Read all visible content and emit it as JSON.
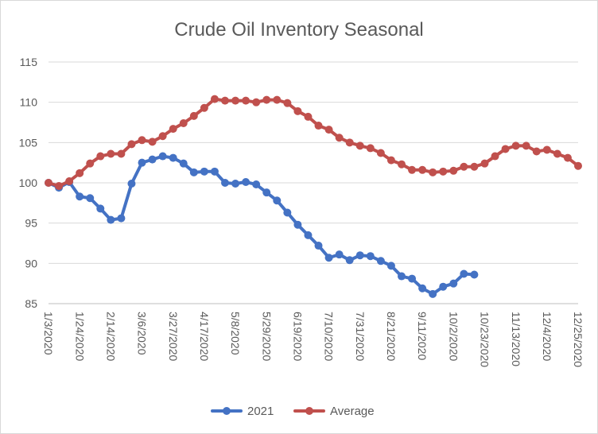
{
  "chart_data": {
    "type": "line",
    "title": "Crude Oil Inventory Seasonal",
    "xlabel": "",
    "ylabel": "",
    "ylim": [
      85,
      115
    ],
    "yticks": [
      85,
      90,
      95,
      100,
      105,
      110,
      115
    ],
    "xlim": [
      "1/3/2020",
      "12/25/2020"
    ],
    "x_tick_labels": [
      "1/3/2020",
      "1/24/2020",
      "2/14/2020",
      "3/6/2020",
      "3/27/2020",
      "4/17/2020",
      "5/8/2020",
      "5/29/2020",
      "6/19/2020",
      "7/10/2020",
      "7/31/2020",
      "8/21/2020",
      "9/11/2020",
      "10/2/2020",
      "10/23/2020",
      "11/13/2020",
      "12/4/2020",
      "12/25/2020"
    ],
    "x_dates": [
      "1/3/2020",
      "1/10/2020",
      "1/17/2020",
      "1/24/2020",
      "1/31/2020",
      "2/7/2020",
      "2/14/2020",
      "2/21/2020",
      "2/28/2020",
      "3/6/2020",
      "3/13/2020",
      "3/20/2020",
      "3/27/2020",
      "4/3/2020",
      "4/10/2020",
      "4/17/2020",
      "4/24/2020",
      "5/1/2020",
      "5/8/2020",
      "5/15/2020",
      "5/22/2020",
      "5/29/2020",
      "6/5/2020",
      "6/12/2020",
      "6/19/2020",
      "6/26/2020",
      "7/3/2020",
      "7/10/2020",
      "7/17/2020",
      "7/24/2020",
      "7/31/2020",
      "8/7/2020",
      "8/14/2020",
      "8/21/2020",
      "8/28/2020",
      "9/4/2020",
      "9/11/2020",
      "9/18/2020",
      "9/25/2020",
      "10/2/2020",
      "10/9/2020",
      "10/16/2020",
      "10/23/2020",
      "10/30/2020",
      "11/6/2020",
      "11/13/2020",
      "11/20/2020",
      "11/27/2020",
      "12/4/2020",
      "12/11/2020",
      "12/18/2020",
      "12/25/2020"
    ],
    "grid": "horizontal",
    "legend_position": "bottom",
    "series": [
      {
        "name": "2021",
        "color": "#4472c4",
        "values": [
          100,
          99.4,
          100.1,
          98.3,
          98.1,
          96.8,
          95.4,
          95.6,
          99.9,
          102.5,
          102.9,
          103.3,
          103.1,
          102.4,
          101.3,
          101.4,
          101.4,
          100.0,
          99.9,
          100.1,
          99.8,
          98.8,
          97.8,
          96.3,
          94.8,
          93.5,
          92.2,
          90.7,
          91.1,
          90.4,
          91.0,
          90.9,
          90.3,
          89.7,
          88.4,
          88.1,
          86.9,
          86.2,
          87.1,
          87.5,
          88.7,
          88.6
        ]
      },
      {
        "name": "Average",
        "color": "#c0504d",
        "values": [
          100,
          99.6,
          100.2,
          101.2,
          102.4,
          103.3,
          103.6,
          103.6,
          104.8,
          105.3,
          105.1,
          105.8,
          106.7,
          107.4,
          108.3,
          109.3,
          110.4,
          110.2,
          110.2,
          110.2,
          110.0,
          110.3,
          110.3,
          109.9,
          108.9,
          108.2,
          107.1,
          106.6,
          105.6,
          105.0,
          104.6,
          104.3,
          103.7,
          102.8,
          102.3,
          101.6,
          101.6,
          101.3,
          101.4,
          101.5,
          102.0,
          102.0,
          102.4,
          103.3,
          104.2,
          104.6,
          104.6,
          103.9,
          104.1,
          103.6,
          103.1,
          102.1
        ]
      }
    ]
  }
}
